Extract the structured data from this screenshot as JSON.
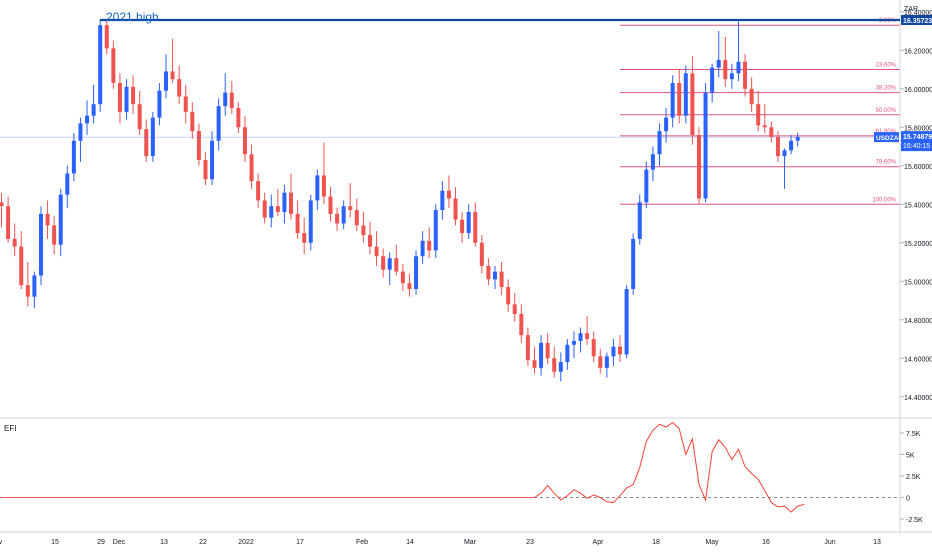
{
  "chart_data": {
    "type": "candlestick",
    "currency_label": "ZAR",
    "symbol": "USDZAR",
    "last_price": "15.74879",
    "countdown": "16:40:15",
    "high_price_label": "16.35723",
    "annotation": "2021 high",
    "ylim": [
      14.3,
      16.43
    ],
    "y_ticks": [
      "14.40000",
      "14.60000",
      "14.80000",
      "15.00000",
      "15.20000",
      "15.40000",
      "15.60000",
      "15.80000",
      "16.00000",
      "16.20000",
      "16.40000"
    ],
    "x_ticks": [
      "Nov",
      "15",
      "29",
      "Dec",
      "13",
      "22",
      "2022",
      "17",
      "Feb",
      "14",
      "Mar",
      "23",
      "Apr",
      "18",
      "May",
      "16",
      "Jun",
      "13"
    ],
    "fib_levels": [
      {
        "label": "0.00%",
        "value": 16.33
      },
      {
        "label": "23.60%",
        "value": 16.1
      },
      {
        "label": "38.20%",
        "value": 15.98
      },
      {
        "label": "50.00%",
        "value": 15.865
      },
      {
        "label": "61.80%",
        "value": 15.755
      },
      {
        "label": "78.60%",
        "value": 15.595
      },
      {
        "label": "100.00%",
        "value": 15.4
      }
    ],
    "ohlc": [
      [
        15.41,
        15.46,
        15.28,
        15.39
      ],
      [
        15.39,
        15.44,
        15.2,
        15.22
      ],
      [
        15.22,
        15.3,
        15.13,
        15.18
      ],
      [
        15.18,
        15.26,
        14.96,
        14.98
      ],
      [
        14.98,
        15.1,
        14.87,
        14.92
      ],
      [
        14.92,
        15.05,
        14.86,
        15.03
      ],
      [
        15.03,
        15.39,
        14.98,
        15.35
      ],
      [
        15.35,
        15.42,
        15.22,
        15.29
      ],
      [
        15.29,
        15.34,
        15.14,
        15.19
      ],
      [
        15.19,
        15.48,
        15.13,
        15.45
      ],
      [
        15.45,
        15.6,
        15.38,
        15.56
      ],
      [
        15.56,
        15.77,
        15.52,
        15.73
      ],
      [
        15.73,
        15.85,
        15.62,
        15.82
      ],
      [
        15.82,
        15.94,
        15.76,
        15.86
      ],
      [
        15.86,
        16.02,
        15.82,
        15.92
      ],
      [
        15.92,
        16.36,
        15.88,
        16.33
      ],
      [
        16.33,
        16.36,
        16.18,
        16.21
      ],
      [
        16.21,
        16.25,
        16.0,
        16.03
      ],
      [
        16.03,
        16.08,
        15.82,
        15.88
      ],
      [
        15.88,
        16.05,
        15.84,
        16.01
      ],
      [
        16.01,
        16.07,
        15.87,
        15.92
      ],
      [
        15.92,
        15.99,
        15.76,
        15.79
      ],
      [
        15.79,
        15.84,
        15.62,
        15.65
      ],
      [
        15.65,
        15.88,
        15.62,
        15.85
      ],
      [
        15.85,
        16.03,
        15.81,
        15.99
      ],
      [
        15.99,
        16.18,
        15.95,
        16.09
      ],
      [
        16.09,
        16.26,
        16.03,
        16.05
      ],
      [
        16.05,
        16.12,
        15.92,
        15.96
      ],
      [
        15.96,
        16.02,
        15.82,
        15.88
      ],
      [
        15.88,
        15.93,
        15.74,
        15.78
      ],
      [
        15.78,
        15.82,
        15.6,
        15.63
      ],
      [
        15.63,
        15.67,
        15.5,
        15.53
      ],
      [
        15.53,
        15.78,
        15.5,
        15.73
      ],
      [
        15.73,
        15.95,
        15.68,
        15.91
      ],
      [
        15.91,
        16.08,
        15.86,
        15.98
      ],
      [
        15.98,
        16.04,
        15.87,
        15.9
      ],
      [
        15.9,
        15.93,
        15.77,
        15.8
      ],
      [
        15.8,
        15.86,
        15.62,
        15.66
      ],
      [
        15.66,
        15.71,
        15.48,
        15.52
      ],
      [
        15.52,
        15.56,
        15.38,
        15.42
      ],
      [
        15.42,
        15.46,
        15.3,
        15.33
      ],
      [
        15.33,
        15.45,
        15.28,
        15.39
      ],
      [
        15.39,
        15.48,
        15.34,
        15.36
      ],
      [
        15.36,
        15.5,
        15.3,
        15.46
      ],
      [
        15.46,
        15.56,
        15.32,
        15.35
      ],
      [
        15.35,
        15.42,
        15.22,
        15.25
      ],
      [
        15.25,
        15.33,
        15.14,
        15.2
      ],
      [
        15.2,
        15.45,
        15.16,
        15.42
      ],
      [
        15.42,
        15.58,
        15.37,
        15.55
      ],
      [
        15.55,
        15.72,
        15.4,
        15.44
      ],
      [
        15.44,
        15.49,
        15.31,
        15.35
      ],
      [
        15.35,
        15.38,
        15.26,
        15.3
      ],
      [
        15.3,
        15.42,
        15.27,
        15.39
      ],
      [
        15.39,
        15.51,
        15.33,
        15.37
      ],
      [
        15.37,
        15.43,
        15.26,
        15.29
      ],
      [
        15.29,
        15.36,
        15.2,
        15.24
      ],
      [
        15.24,
        15.31,
        15.14,
        15.18
      ],
      [
        15.18,
        15.26,
        15.08,
        15.13
      ],
      [
        15.13,
        15.17,
        15.02,
        15.06
      ],
      [
        15.06,
        15.15,
        14.98,
        15.12
      ],
      [
        15.12,
        15.19,
        15.03,
        15.05
      ],
      [
        15.05,
        15.09,
        14.95,
        14.99
      ],
      [
        14.99,
        15.04,
        14.92,
        14.96
      ],
      [
        14.96,
        15.16,
        14.93,
        15.13
      ],
      [
        15.13,
        15.26,
        15.09,
        15.21
      ],
      [
        15.21,
        15.28,
        15.12,
        15.16
      ],
      [
        15.16,
        15.4,
        15.12,
        15.37
      ],
      [
        15.37,
        15.52,
        15.32,
        15.47
      ],
      [
        15.47,
        15.55,
        15.38,
        15.43
      ],
      [
        15.43,
        15.49,
        15.29,
        15.32
      ],
      [
        15.32,
        15.36,
        15.2,
        15.25
      ],
      [
        15.25,
        15.4,
        15.22,
        15.36
      ],
      [
        15.36,
        15.41,
        15.18,
        15.2
      ],
      [
        15.2,
        15.24,
        15.04,
        15.08
      ],
      [
        15.08,
        15.12,
        14.98,
        15.01
      ],
      [
        15.01,
        15.08,
        14.96,
        15.05
      ],
      [
        15.05,
        15.1,
        14.93,
        14.97
      ],
      [
        14.97,
        15.01,
        14.84,
        14.88
      ],
      [
        14.88,
        14.94,
        14.79,
        14.83
      ],
      [
        14.83,
        14.88,
        14.68,
        14.72
      ],
      [
        14.72,
        14.76,
        14.56,
        14.59
      ],
      [
        14.59,
        14.66,
        14.52,
        14.55
      ],
      [
        14.55,
        14.72,
        14.51,
        14.68
      ],
      [
        14.68,
        14.73,
        14.57,
        14.6
      ],
      [
        14.6,
        14.66,
        14.5,
        14.53
      ],
      [
        14.53,
        14.63,
        14.48,
        14.58
      ],
      [
        14.58,
        14.7,
        14.54,
        14.67
      ],
      [
        14.67,
        14.74,
        14.6,
        14.69
      ],
      [
        14.69,
        14.76,
        14.63,
        14.73
      ],
      [
        14.73,
        14.82,
        14.67,
        14.7
      ],
      [
        14.7,
        14.74,
        14.58,
        14.61
      ],
      [
        14.61,
        14.65,
        14.52,
        14.55
      ],
      [
        14.55,
        14.63,
        14.5,
        14.61
      ],
      [
        14.61,
        14.7,
        14.56,
        14.66
      ],
      [
        14.66,
        14.72,
        14.58,
        14.62
      ],
      [
        14.62,
        14.98,
        14.6,
        14.96
      ],
      [
        14.96,
        15.25,
        14.93,
        15.22
      ],
      [
        15.22,
        15.45,
        15.19,
        15.41
      ],
      [
        15.41,
        15.62,
        15.38,
        15.58
      ],
      [
        15.58,
        15.7,
        15.52,
        15.66
      ],
      [
        15.66,
        15.82,
        15.6,
        15.78
      ],
      [
        15.78,
        15.9,
        15.72,
        15.85
      ],
      [
        15.85,
        16.07,
        15.8,
        16.03
      ],
      [
        16.03,
        16.1,
        15.82,
        15.86
      ],
      [
        15.86,
        16.12,
        15.82,
        16.08
      ],
      [
        16.08,
        16.17,
        15.71,
        15.76
      ],
      [
        15.76,
        15.8,
        15.4,
        15.43
      ],
      [
        15.43,
        16.03,
        15.41,
        15.98
      ],
      [
        15.98,
        16.13,
        15.93,
        16.11
      ],
      [
        16.11,
        16.3,
        16.06,
        16.15
      ],
      [
        16.15,
        16.27,
        16.01,
        16.05
      ],
      [
        16.05,
        16.13,
        16.0,
        16.08
      ],
      [
        16.08,
        16.35,
        16.04,
        16.14
      ],
      [
        16.14,
        16.18,
        15.96,
        16.0
      ],
      [
        16.0,
        16.06,
        15.88,
        15.92
      ],
      [
        15.92,
        15.99,
        15.78,
        15.81
      ],
      [
        15.81,
        15.92,
        15.77,
        15.8
      ],
      [
        15.8,
        15.83,
        15.72,
        15.75
      ],
      [
        15.75,
        15.78,
        15.62,
        15.65
      ],
      [
        15.65,
        15.69,
        15.48,
        15.68
      ],
      [
        15.68,
        15.76,
        15.66,
        15.73
      ],
      [
        15.73,
        15.77,
        15.7,
        15.75
      ]
    ],
    "efi_label": "EFI",
    "efi_ticks": [
      "7.5K",
      "5K",
      "2.5K",
      "0",
      "-2.5K"
    ],
    "efi_ylim": [
      -3200,
      9000
    ],
    "efi_values": [
      0,
      0,
      0,
      0,
      0,
      0,
      0,
      0,
      0,
      0,
      0,
      0,
      0,
      0,
      0,
      0,
      0,
      0,
      0,
      0,
      0,
      0,
      0,
      0,
      0,
      0,
      0,
      0,
      0,
      0,
      0,
      0,
      0,
      0,
      0,
      0,
      0,
      0,
      0,
      0,
      0,
      0,
      0,
      0,
      0,
      0,
      0,
      0,
      0,
      0,
      0,
      0,
      0,
      0,
      0,
      0,
      0,
      0,
      0,
      0,
      0,
      0,
      0,
      0,
      0,
      0,
      0,
      0,
      0,
      0,
      0,
      0,
      0,
      0,
      0,
      0,
      0,
      0,
      0,
      0,
      0,
      0,
      500,
      1400,
      500,
      -300,
      200,
      900,
      500,
      -100,
      300,
      0,
      -500,
      -600,
      200,
      1100,
      1500,
      3500,
      6500,
      7800,
      8500,
      8200,
      8700,
      8000,
      5000,
      6800,
      1500,
      -300,
      5300,
      6700,
      5800,
      4400,
      5600,
      3600,
      2800,
      2100,
      800,
      -600,
      -1100,
      -1000,
      -1700,
      -1000,
      -800
    ]
  }
}
